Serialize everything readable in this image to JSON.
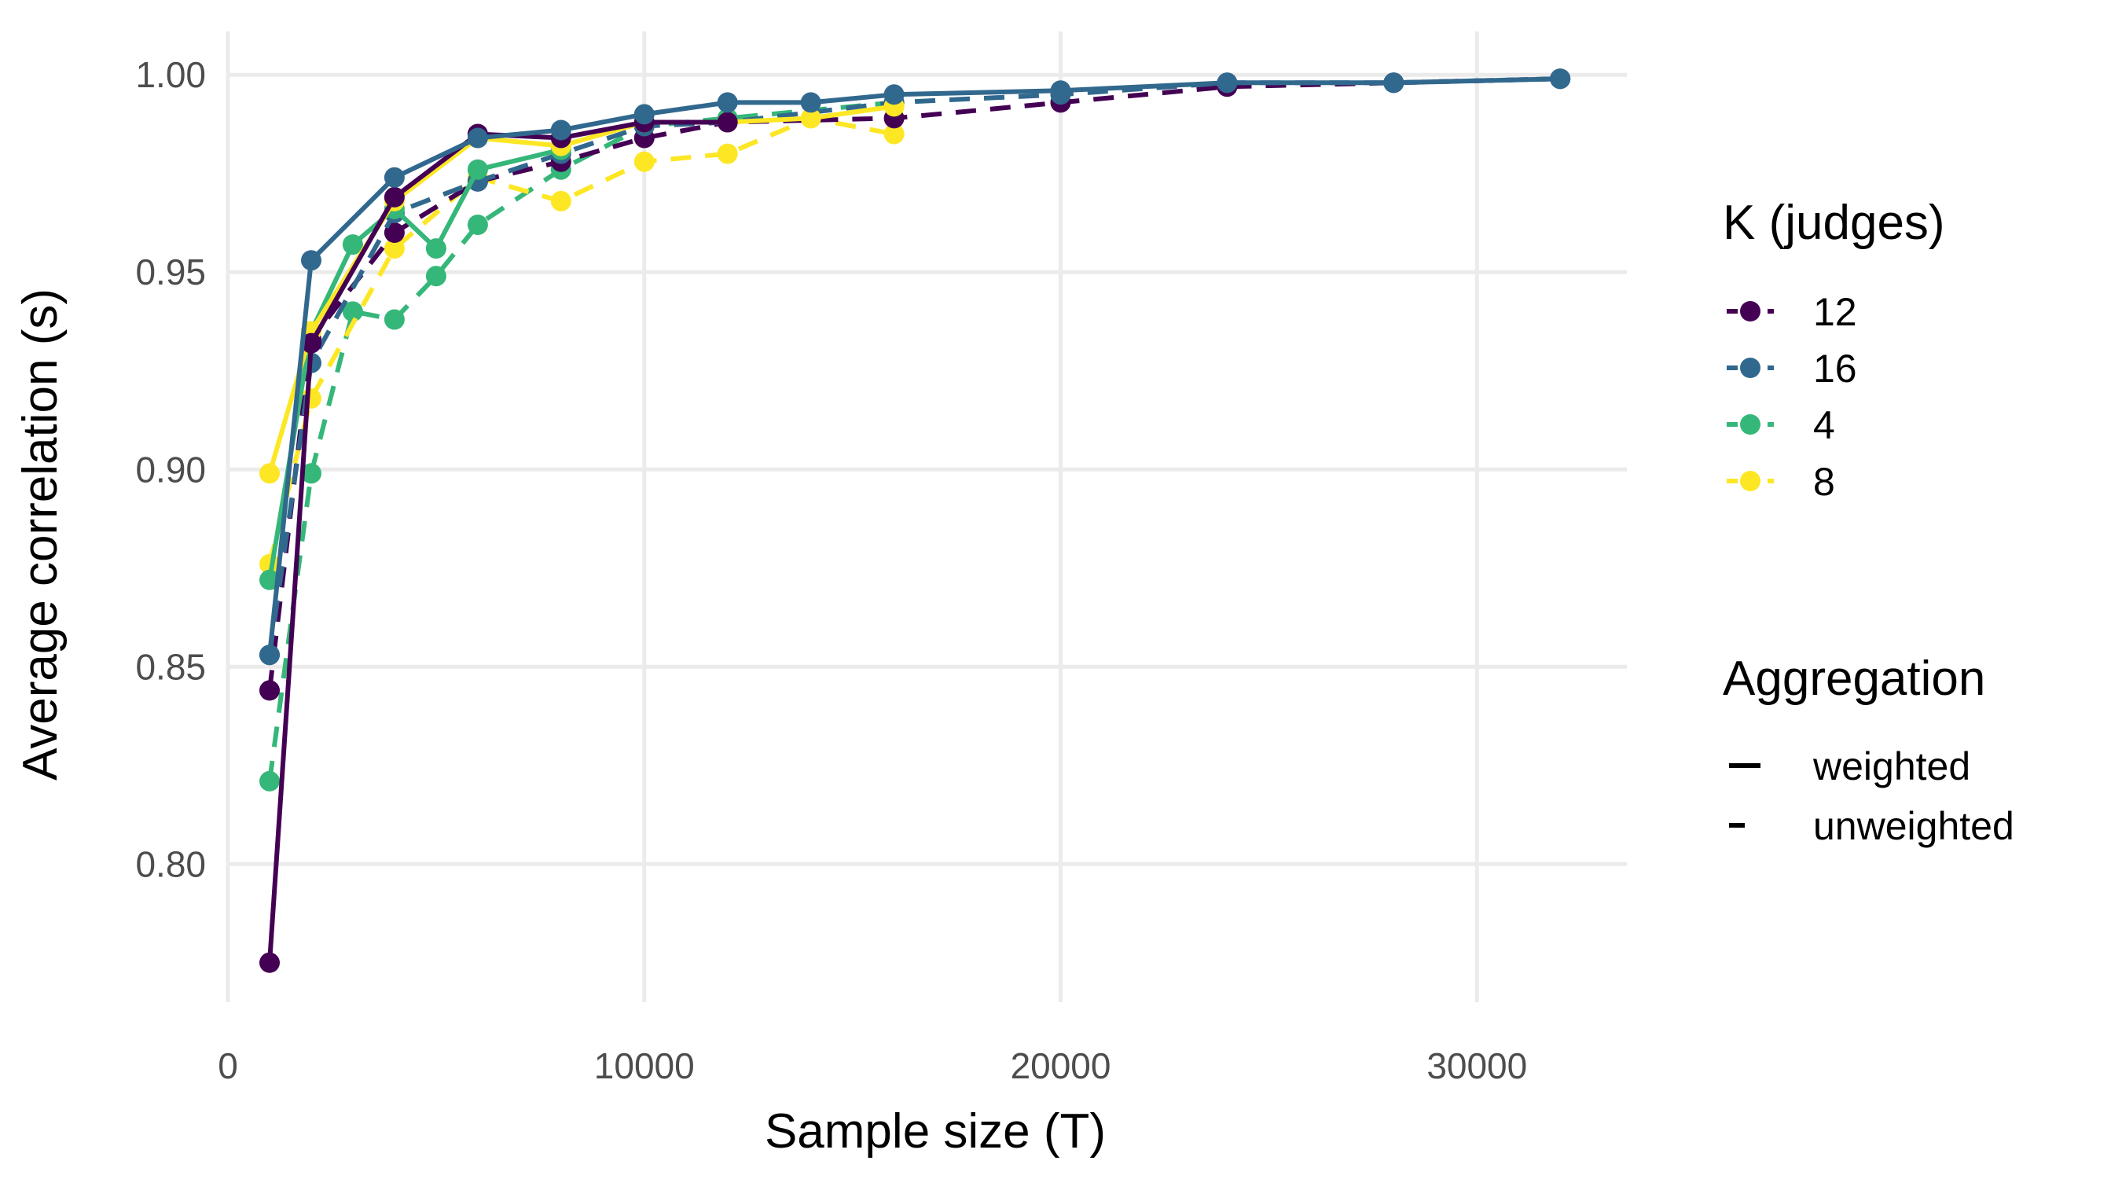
{
  "chart_data": {
    "type": "line",
    "title": "",
    "xlabel": "Sample size (T)",
    "ylabel": "Average correlation (s)",
    "xlim": [
      0,
      33600
    ],
    "ylim": [
      0.765,
      1.011
    ],
    "x_ticks": [
      0,
      10000,
      20000,
      30000
    ],
    "x_tick_labels": [
      "0",
      "10000",
      "20000",
      "30000"
    ],
    "y_ticks": [
      0.8,
      0.85,
      0.9,
      0.95,
      1.0
    ],
    "y_tick_labels": [
      "0.80",
      "0.85",
      "0.90",
      "0.95",
      "1.00"
    ],
    "grid": true,
    "legend_position": "right",
    "colors": {
      "12": "#440154",
      "16": "#31688e",
      "4": "#35b779",
      "8": "#fde725"
    },
    "legends": {
      "color": {
        "title": "K (judges)",
        "entries": [
          {
            "key": "12",
            "label": "12"
          },
          {
            "key": "16",
            "label": "16"
          },
          {
            "key": "4",
            "label": "4"
          },
          {
            "key": "8",
            "label": "8"
          }
        ]
      },
      "linetype": {
        "title": "Aggregation",
        "entries": [
          {
            "key": "weighted",
            "label": "weighted",
            "style": "solid"
          },
          {
            "key": "unweighted",
            "label": "unweighted",
            "style": "dashed"
          }
        ]
      }
    },
    "series": [
      {
        "k": "4",
        "aggregation": "unweighted",
        "points": [
          [
            1000,
            0.821
          ],
          [
            2000,
            0.899
          ],
          [
            3000,
            0.94
          ],
          [
            4000,
            0.938
          ],
          [
            5000,
            0.949
          ],
          [
            6000,
            0.962
          ],
          [
            8000,
            0.976
          ],
          [
            10000,
            0.987
          ],
          [
            12000,
            0.989
          ],
          [
            16000,
            0.993
          ]
        ]
      },
      {
        "k": "8",
        "aggregation": "unweighted",
        "points": [
          [
            1000,
            0.876
          ],
          [
            2000,
            0.918
          ],
          [
            4000,
            0.956
          ],
          [
            6000,
            0.974
          ],
          [
            8000,
            0.968
          ],
          [
            10000,
            0.978
          ],
          [
            12000,
            0.98
          ],
          [
            14000,
            0.989
          ],
          [
            16000,
            0.985
          ]
        ]
      },
      {
        "k": "12",
        "aggregation": "unweighted",
        "points": [
          [
            1000,
            0.844
          ],
          [
            2000,
            0.933
          ],
          [
            4000,
            0.96
          ],
          [
            6000,
            0.973
          ],
          [
            8000,
            0.978
          ],
          [
            10000,
            0.984
          ],
          [
            12000,
            0.988
          ],
          [
            16000,
            0.989
          ],
          [
            20000,
            0.993
          ],
          [
            24000,
            0.997
          ],
          [
            28000,
            0.998
          ],
          [
            32000,
            0.999
          ]
        ]
      },
      {
        "k": "16",
        "aggregation": "unweighted",
        "points": [
          [
            1000,
            0.853
          ],
          [
            2000,
            0.927
          ],
          [
            4000,
            0.965
          ],
          [
            6000,
            0.973
          ],
          [
            8000,
            0.98
          ],
          [
            10000,
            0.987
          ],
          [
            12000,
            0.988
          ],
          [
            16000,
            0.993
          ],
          [
            20000,
            0.995
          ],
          [
            24000,
            0.998
          ],
          [
            28000,
            0.998
          ],
          [
            32000,
            0.999
          ]
        ]
      },
      {
        "k": "4",
        "aggregation": "weighted",
        "points": [
          [
            1000,
            0.872
          ],
          [
            2000,
            0.935
          ],
          [
            3000,
            0.957
          ],
          [
            4000,
            0.966
          ],
          [
            5000,
            0.956
          ],
          [
            6000,
            0.976
          ],
          [
            8000,
            0.981
          ]
        ]
      },
      {
        "k": "8",
        "aggregation": "weighted",
        "points": [
          [
            1000,
            0.899
          ],
          [
            2000,
            0.935
          ],
          [
            4000,
            0.968
          ],
          [
            6000,
            0.984
          ],
          [
            8000,
            0.982
          ],
          [
            10000,
            0.988
          ],
          [
            12000,
            0.988
          ],
          [
            14000,
            0.989
          ],
          [
            16000,
            0.992
          ]
        ]
      },
      {
        "k": "12",
        "aggregation": "weighted",
        "points": [
          [
            1000,
            0.775
          ],
          [
            2000,
            0.932
          ],
          [
            4000,
            0.969
          ],
          [
            6000,
            0.985
          ],
          [
            8000,
            0.984
          ],
          [
            10000,
            0.988
          ],
          [
            12000,
            0.988
          ]
        ]
      },
      {
        "k": "16",
        "aggregation": "weighted",
        "points": [
          [
            1000,
            0.853
          ],
          [
            2000,
            0.953
          ],
          [
            4000,
            0.974
          ],
          [
            6000,
            0.984
          ],
          [
            8000,
            0.986
          ],
          [
            10000,
            0.99
          ],
          [
            12000,
            0.993
          ],
          [
            14000,
            0.993
          ],
          [
            16000,
            0.995
          ],
          [
            20000,
            0.996
          ],
          [
            24000,
            0.998
          ],
          [
            28000,
            0.998
          ],
          [
            32000,
            0.999
          ]
        ]
      }
    ]
  }
}
